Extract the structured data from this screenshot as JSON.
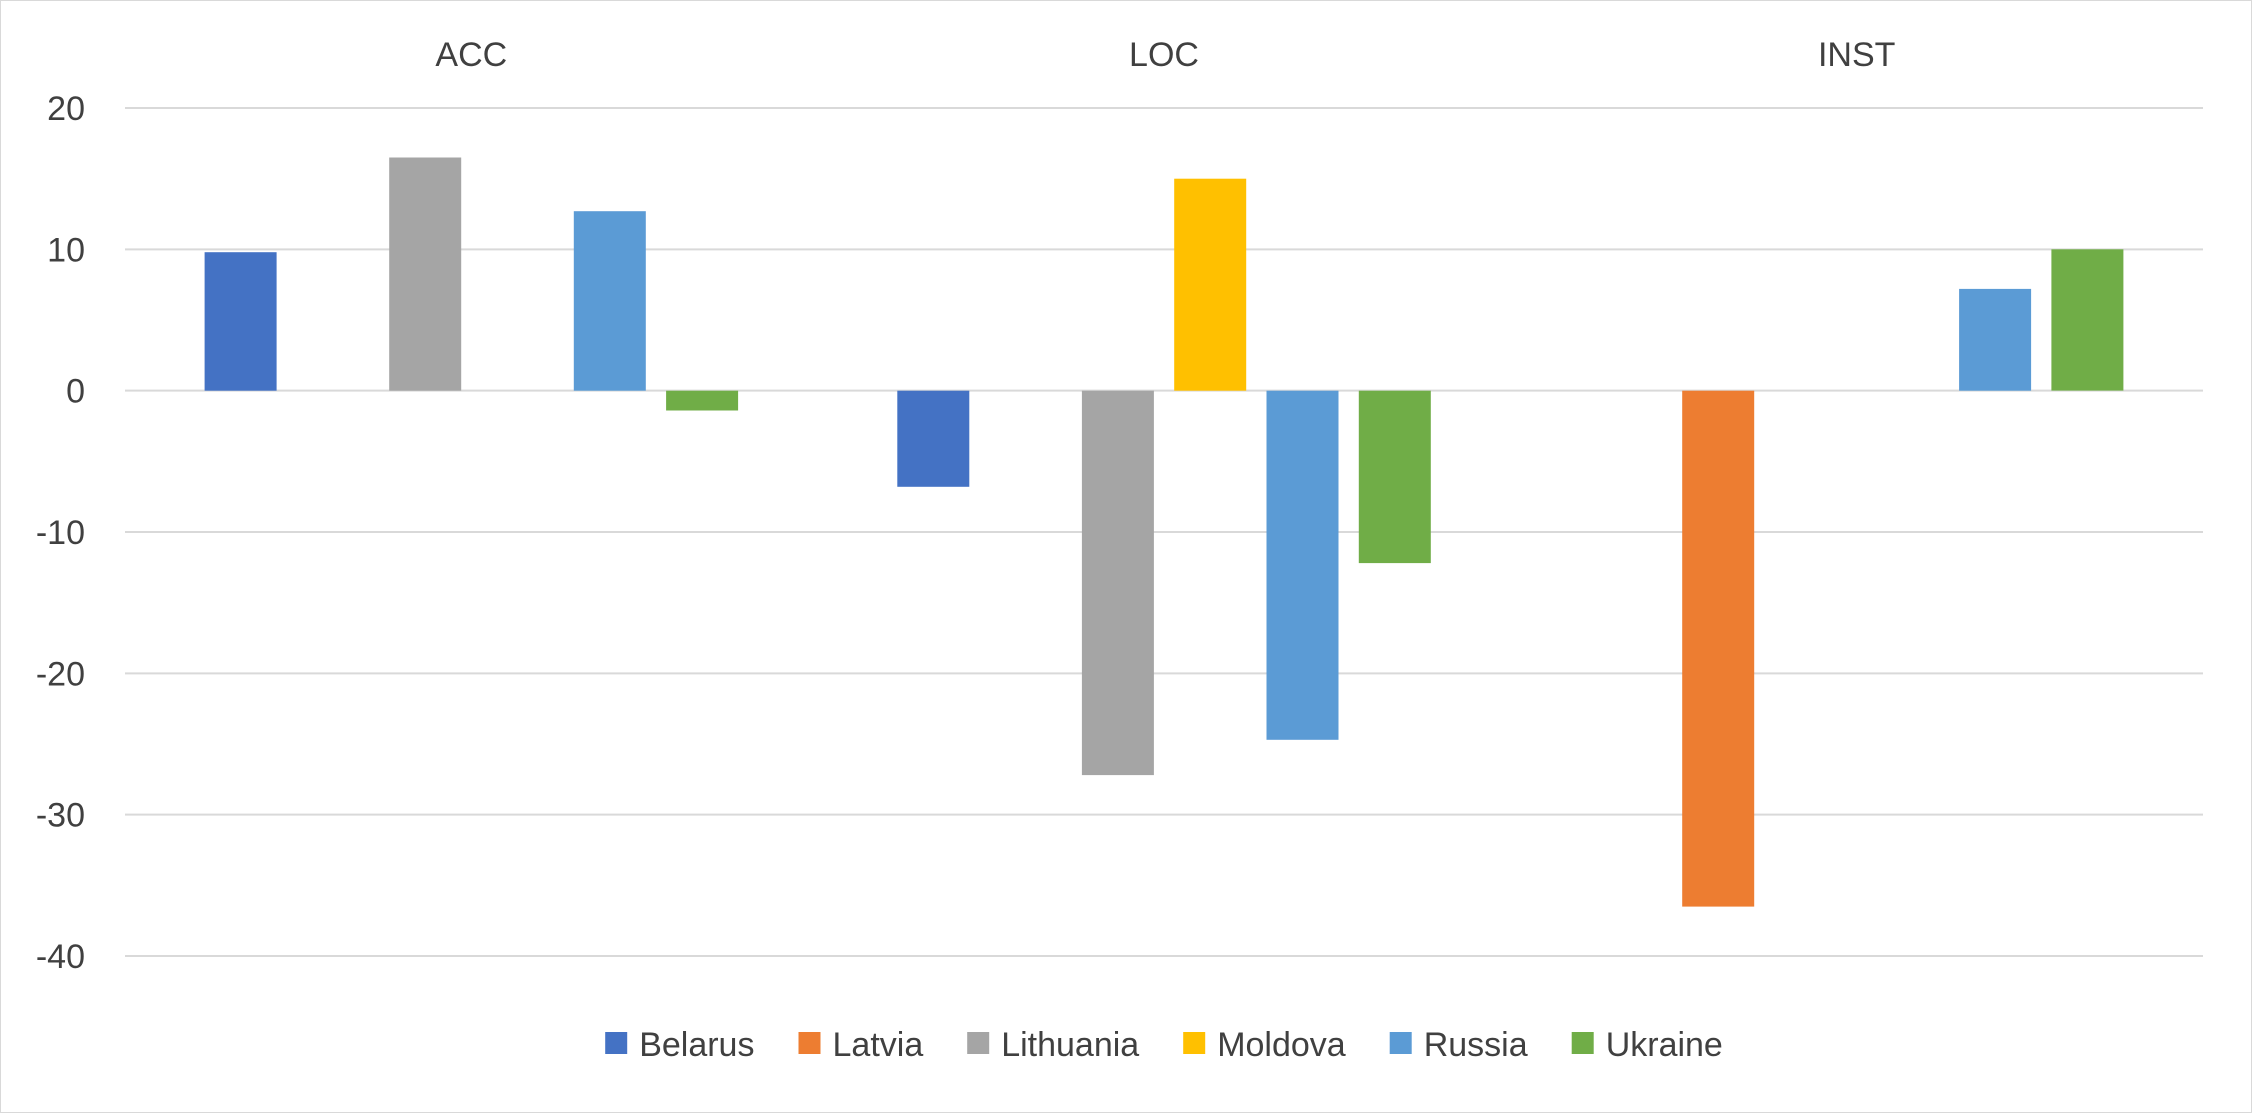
{
  "chart_data": {
    "type": "bar",
    "categories": [
      "ACC",
      "LOC",
      "INST"
    ],
    "series": [
      {
        "name": "Belarus",
        "color": "#4472c4",
        "values": [
          9.8,
          -6.8,
          null
        ]
      },
      {
        "name": "Latvia",
        "color": "#ed7d31",
        "values": [
          null,
          null,
          -36.5
        ]
      },
      {
        "name": "Lithuania",
        "color": "#a5a5a5",
        "values": [
          16.5,
          -27.2,
          null
        ]
      },
      {
        "name": "Moldova",
        "color": "#ffc000",
        "values": [
          null,
          15.0,
          null
        ]
      },
      {
        "name": "Russia",
        "color": "#5b9bd5",
        "values": [
          12.7,
          -24.7,
          7.2
        ]
      },
      {
        "name": "Ukraine",
        "color": "#70ad47",
        "values": [
          -1.4,
          -12.2,
          10.0
        ]
      }
    ],
    "yticks": [
      "20",
      "10",
      "0",
      "-10",
      "-20",
      "-30",
      "-40"
    ],
    "ylim": [
      -40,
      20
    ],
    "grid": true,
    "legend_position": "bottom",
    "category_label_position": "top"
  }
}
